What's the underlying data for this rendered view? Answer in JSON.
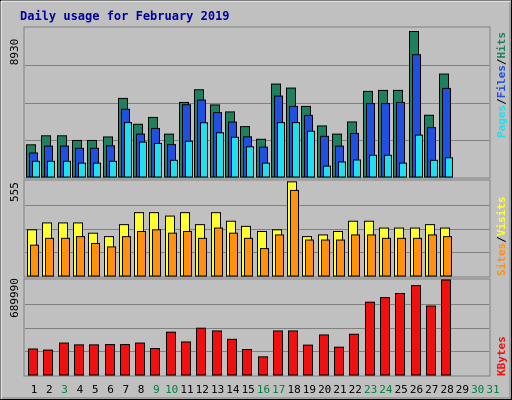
{
  "title": "Daily usage for February 2019",
  "colors": {
    "background": "#C0C0C0",
    "panel_border": "#808080",
    "title": "#0000A0",
    "hits": "#1F8060",
    "files": "#1F50E0",
    "pages": "#20E0F0",
    "visits": "#FFFF30",
    "sites": "#FF9010",
    "kbytes": "#F01010",
    "day_weekday": "#000000",
    "day_weekend": "#008040"
  },
  "legends": {
    "top": [
      {
        "label": "Pages",
        "color": "#20E0F0"
      },
      {
        "label": "Files",
        "color": "#1F50E0"
      },
      {
        "label": "Hits",
        "color": "#1F8060"
      }
    ],
    "mid": [
      {
        "label": "Sites",
        "color": "#FF9010"
      },
      {
        "label": "Visits",
        "color": "#FFFF30"
      }
    ],
    "bot": [
      {
        "label": "KBytes",
        "color": "#F01010"
      }
    ]
  },
  "chart_data": {
    "type": "bar",
    "title": "Daily usage for February 2019",
    "x": [
      "1",
      "2",
      "3",
      "4",
      "5",
      "6",
      "7",
      "8",
      "9",
      "10",
      "11",
      "12",
      "13",
      "14",
      "15",
      "16",
      "17",
      "18",
      "19",
      "20",
      "21",
      "22",
      "23",
      "24",
      "25",
      "26",
      "27",
      "28",
      "29",
      "30",
      "31"
    ],
    "weekend_days": [
      "3",
      "9",
      "10",
      "16",
      "17",
      "23",
      "24",
      "30",
      "31"
    ],
    "panels": [
      {
        "name": "top",
        "ymax_label": "8930",
        "ylim": [
          0,
          8930
        ],
        "series": [
          {
            "name": "Hits",
            "values": [
              1930,
              2470,
              2470,
              2190,
              2190,
              2400,
              4710,
              3160,
              3570,
              2570,
              4470,
              5230,
              4320,
              3900,
              3020,
              2260,
              5570,
              5330,
              4230,
              3060,
              2570,
              3300,
              5130,
              5190,
              5190,
              8720,
              3700,
              6170,
              0,
              0,
              0
            ]
          },
          {
            "name": "Files",
            "values": [
              1440,
              1850,
              1850,
              1720,
              1720,
              1870,
              4060,
              2570,
              2910,
              1940,
              4330,
              4610,
              3860,
              3290,
              2410,
              1790,
              4850,
              4230,
              3690,
              2440,
              1850,
              2610,
              4400,
              4400,
              4470,
              7330,
              2960,
              5310,
              0,
              0,
              0
            ]
          },
          {
            "name": "Pages",
            "values": [
              940,
              940,
              940,
              830,
              830,
              940,
              3260,
              2090,
              2010,
              1000,
              2140,
              3250,
              2650,
              2380,
              1810,
              830,
              3260,
              3260,
              2740,
              650,
              900,
              1020,
              1300,
              1300,
              830,
              2510,
              1000,
              1150,
              0,
              0,
              0
            ]
          }
        ]
      },
      {
        "name": "mid",
        "ymax_label": "555",
        "ylim": [
          0,
          555
        ],
        "series": [
          {
            "name": "Visits",
            "values": [
              270,
              310,
              310,
              310,
              250,
              230,
              300,
              370,
              370,
              350,
              370,
              300,
              370,
              320,
              290,
              260,
              270,
              550,
              230,
              240,
              260,
              320,
              320,
              280,
              280,
              280,
              300,
              280,
              0,
              0,
              0
            ]
          },
          {
            "name": "Sites",
            "values": [
              180,
              220,
              220,
              230,
              190,
              170,
              230,
              260,
              270,
              250,
              260,
              220,
              280,
              250,
              220,
              160,
              240,
              500,
              210,
              210,
              210,
              240,
              240,
              220,
              220,
              220,
              240,
              230,
              0,
              0,
              0
            ]
          }
        ]
      },
      {
        "name": "bot",
        "ymax_label": "689990",
        "ylim": [
          0,
          689990
        ],
        "series": [
          {
            "name": "KBytes",
            "values": [
              189000,
              181000,
              232000,
              219000,
              219000,
              221000,
              221000,
              232000,
              192000,
              311000,
              240000,
              340000,
              320000,
              259000,
              185000,
              132000,
              320000,
              320000,
              217000,
              291000,
              202000,
              296000,
              529000,
              562000,
              592000,
              649000,
              501000,
              689990,
              0,
              0,
              0
            ]
          }
        ]
      }
    ]
  }
}
